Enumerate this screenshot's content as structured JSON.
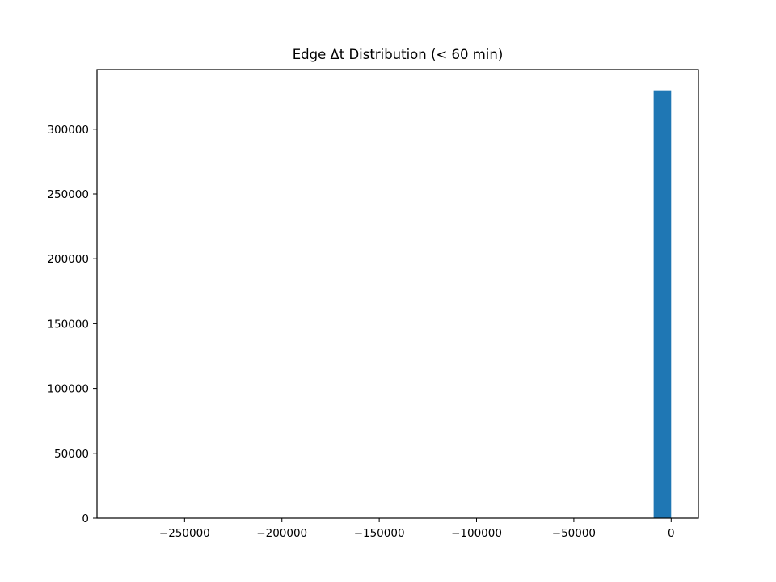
{
  "chart_data": {
    "type": "bar",
    "title": "Edge Δt Distribution (< 60 min)",
    "xlabel": "",
    "ylabel": "",
    "xlim": [
      -295000,
      14000
    ],
    "ylim": [
      0,
      346000
    ],
    "xticks": [
      -250000,
      -200000,
      -150000,
      -100000,
      -50000,
      0
    ],
    "xtick_labels": [
      "−250000",
      "−200000",
      "−150000",
      "−100000",
      "−50000",
      "0"
    ],
    "yticks": [
      0,
      50000,
      100000,
      150000,
      200000,
      250000,
      300000
    ],
    "ytick_labels": [
      "0",
      "50000",
      "100000",
      "150000",
      "200000",
      "250000",
      "300000"
    ],
    "grid": false,
    "bar_color": "#1f77b4",
    "bins": [
      {
        "x_start": -9000,
        "x_end": 0,
        "count": 330000
      }
    ]
  }
}
